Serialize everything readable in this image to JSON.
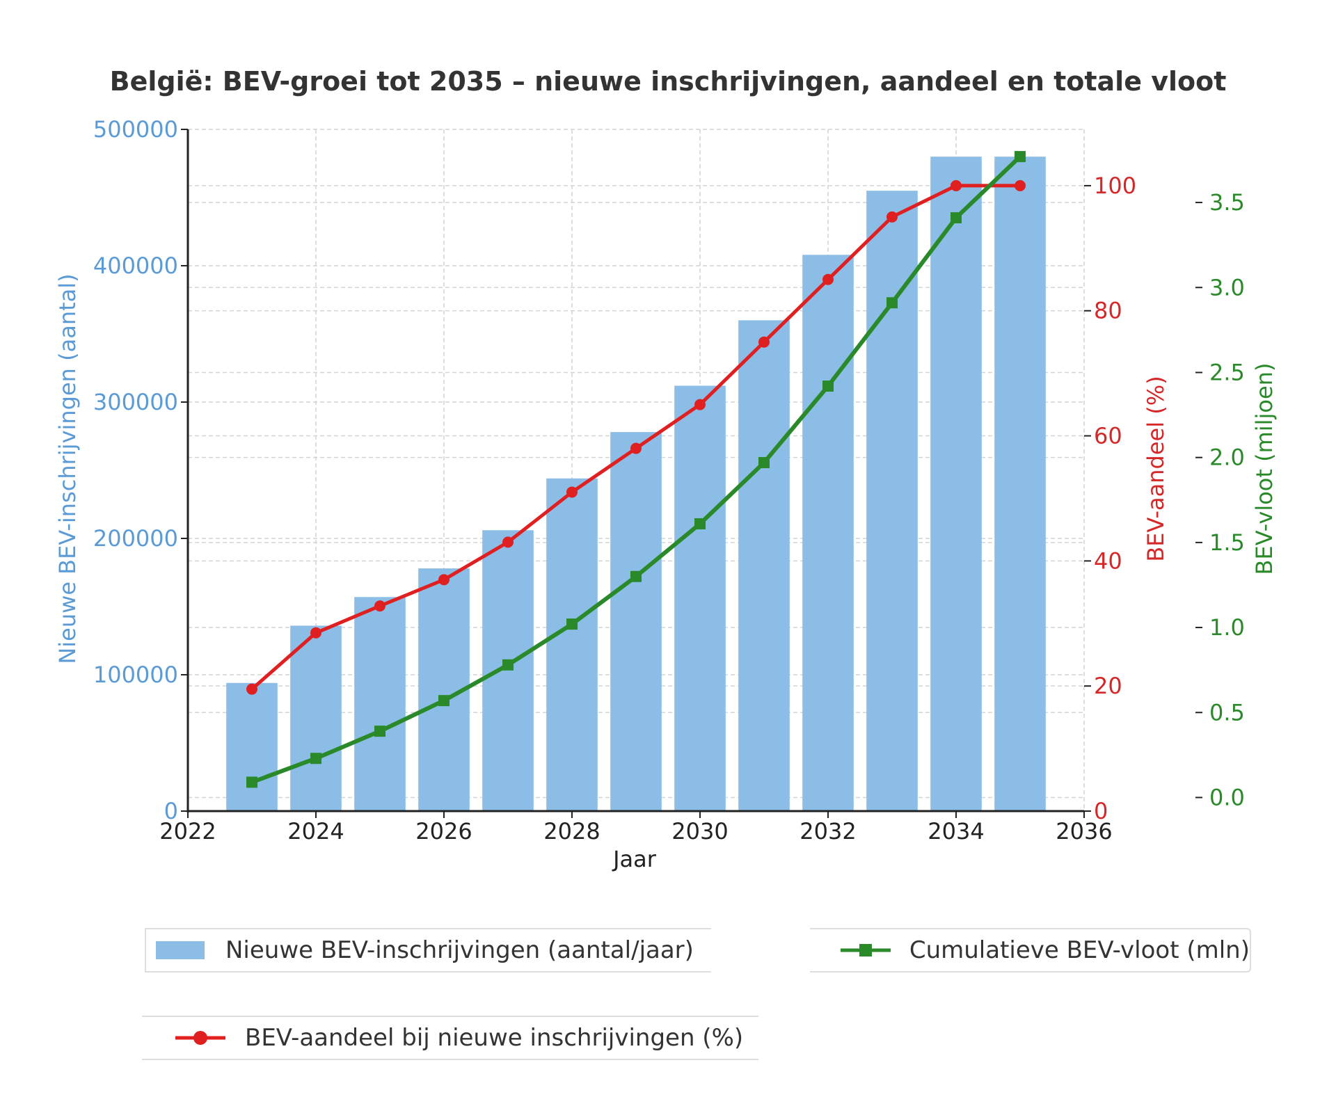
{
  "chart_data": {
    "type": "bar",
    "title": "België: BEV-groei tot 2035 – nieuwe inschrijvingen, aandeel en totale vloot",
    "xlabel": "Jaar",
    "x_ticks": [
      "2022",
      "2024",
      "2026",
      "2028",
      "2030",
      "2032",
      "2034",
      "2036"
    ],
    "xlim": [
      2022,
      2036
    ],
    "grid": true,
    "axes": {
      "left": {
        "label": "Nieuwe BEV-inschrijvingen (aantal)",
        "ticks": [
          "0",
          "100000",
          "200000",
          "300000",
          "400000",
          "500000"
        ],
        "ylim": [
          0,
          500000
        ],
        "color": "#5b9bd5"
      },
      "right1": {
        "label": "BEV-aandeel (%)",
        "ticks": [
          "0",
          "20",
          "40",
          "60",
          "80",
          "100"
        ],
        "ylim": [
          0,
          109
        ],
        "color": "#d62728"
      },
      "right2": {
        "label": "BEV-vloot (miljoen)",
        "ticks": [
          "0.0",
          "0.5",
          "1.0",
          "1.5",
          "2.0",
          "2.5",
          "3.0",
          "3.5"
        ],
        "ylim": [
          -0.08,
          3.93
        ],
        "color": "#2a8a2a"
      }
    },
    "x": [
      2023,
      2024,
      2025,
      2026,
      2027,
      2028,
      2029,
      2030,
      2031,
      2032,
      2033,
      2034,
      2035
    ],
    "series": [
      {
        "name": "Nieuwe BEV-inschrijvingen (aantal/jaar)",
        "kind": "bar",
        "axis": "left",
        "color": "#8bbde6",
        "values": [
          94000,
          136000,
          157000,
          178000,
          206000,
          244000,
          278000,
          312000,
          360000,
          408000,
          455000,
          480000,
          480000
        ]
      },
      {
        "name": "BEV-aandeel bij nieuwe inschrijvingen (%)",
        "kind": "line",
        "marker": "circle",
        "axis": "right1",
        "color": "#e02020",
        "values": [
          19.5,
          28.5,
          32.8,
          37,
          43,
          51,
          58,
          65,
          75,
          85,
          95,
          100,
          100
        ]
      },
      {
        "name": "Cumulatieve BEV-vloot (mln)",
        "kind": "line",
        "marker": "square",
        "axis": "right2",
        "color": "#2a8a2a",
        "values": [
          0.09,
          0.23,
          0.39,
          0.57,
          0.78,
          1.02,
          1.3,
          1.61,
          1.97,
          2.42,
          2.91,
          3.41,
          3.77
        ]
      }
    ],
    "legend_placement": "bottom"
  }
}
